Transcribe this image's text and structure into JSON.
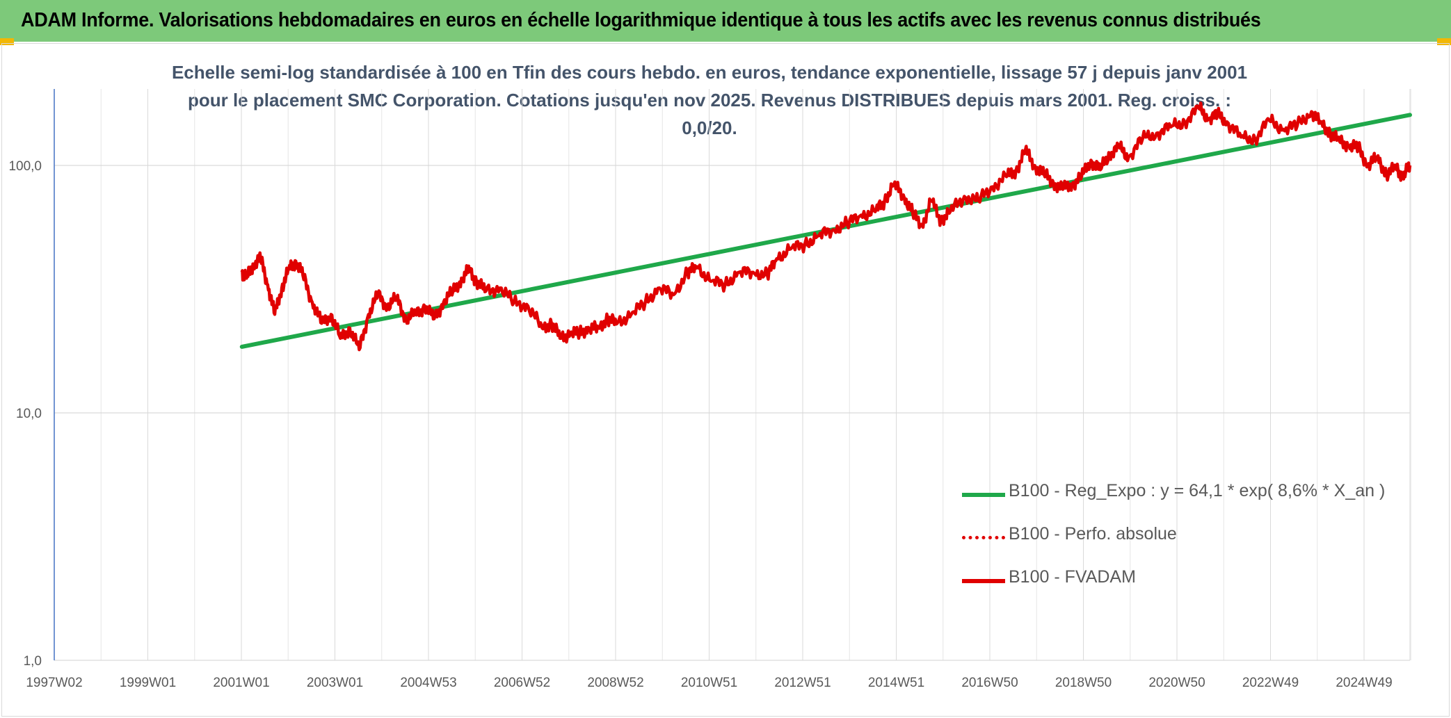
{
  "header": {
    "title": "ADAM Informe. Valorisations hebdomadaires en euros en échelle logarithmique identique à tous les actifs avec les revenus connus distribués"
  },
  "chart_data": {
    "type": "line",
    "title": "Echelle semi-log standardisée à 100 en Tfin des cours hebdo. en euros, tendance exponentielle, lissage 57 j depuis janv 2001 pour le placement SMC Corporation. Cotations jusqu'en nov 2025. Revenus DISTRIBUES depuis mars 2001. Reg. croiss. : 0,0/20.",
    "xlabel": "",
    "ylabel": "",
    "y_scale": "log",
    "ylim": [
      1,
      200
    ],
    "y_ticks": [
      "1,0",
      "10,0",
      "100,0"
    ],
    "x_ticks": [
      "1997W02",
      "1999W01",
      "2001W01",
      "2003W01",
      "2004W53",
      "2006W52",
      "2008W52",
      "2010W51",
      "2012W51",
      "2014W51",
      "2016W50",
      "2018W50",
      "2020W50",
      "2022W49",
      "2024W49"
    ],
    "x_range": [
      1997.0,
      2025.9
    ],
    "grid": true,
    "legend_position": "bottom-right",
    "colors": {
      "regression": "#1fa84a",
      "perf": "#e00000",
      "fvadam": "#e00000",
      "header_bg": "#7dc97a",
      "corner": "#f2b705"
    },
    "series": [
      {
        "name": "B100 - Reg_Expo : y = 64,1 * exp( 8,6% *  X_an )",
        "style": "solid-green",
        "x": [
          2001.0,
          2025.9
        ],
        "y": [
          18.5,
          160
        ]
      },
      {
        "name": "B100 - Perfo. absolue",
        "style": "dotted-red",
        "x": [],
        "y": []
      },
      {
        "name": "B100 - FVADAM",
        "style": "solid-red",
        "x": [
          2001.0,
          2001.1,
          2001.25,
          2001.4,
          2001.55,
          2001.7,
          2001.85,
          2002.0,
          2002.15,
          2002.3,
          2002.5,
          2002.7,
          2002.9,
          2003.1,
          2003.3,
          2003.5,
          2003.7,
          2003.9,
          2004.1,
          2004.3,
          2004.5,
          2004.7,
          2004.9,
          2005.1,
          2005.3,
          2005.5,
          2005.7,
          2005.85,
          2006.0,
          2006.2,
          2006.5,
          2006.8,
          2007.1,
          2007.4,
          2007.6,
          2007.8,
          2008.0,
          2008.2,
          2008.4,
          2008.6,
          2008.8,
          2009.0,
          2009.3,
          2009.6,
          2009.9,
          2010.2,
          2010.5,
          2010.7,
          2011.0,
          2011.3,
          2011.6,
          2011.9,
          2012.2,
          2012.4,
          2012.7,
          2013.0,
          2013.3,
          2013.6,
          2013.9,
          2014.2,
          2014.5,
          2014.7,
          2014.9,
          2015.1,
          2015.3,
          2015.5,
          2015.7,
          2015.9,
          2016.1,
          2016.4,
          2016.7,
          2017.0,
          2017.3,
          2017.5,
          2017.7,
          2017.9,
          2018.1,
          2018.3,
          2018.5,
          2018.7,
          2018.9,
          2019.1,
          2019.3,
          2019.5,
          2019.7,
          2019.9,
          2020.2,
          2020.5,
          2020.8,
          2021.1,
          2021.4,
          2021.6,
          2021.8,
          2022.0,
          2022.3,
          2022.6,
          2022.9,
          2023.2,
          2023.5,
          2023.8,
          2024.0,
          2024.2,
          2024.4,
          2024.6,
          2024.8,
          2025.0,
          2025.2,
          2025.4,
          2025.6,
          2025.75,
          2025.9
        ],
        "y": [
          37,
          35,
          40,
          42,
          33,
          25,
          32,
          38,
          41,
          36,
          28,
          23,
          25,
          20,
          22,
          18,
          25,
          30,
          27,
          29,
          24,
          25,
          27,
          24,
          28,
          31,
          35,
          38,
          34,
          31,
          32,
          28,
          27,
          22,
          23,
          20,
          21,
          21,
          22,
          22,
          24,
          23,
          25,
          28,
          32,
          30,
          37,
          39,
          34,
          33,
          37,
          37,
          36,
          42,
          46,
          48,
          52,
          55,
          58,
          63,
          65,
          72,
          84,
          76,
          64,
          57,
          72,
          60,
          65,
          75,
          72,
          82,
          90,
          95,
          115,
          100,
          92,
          85,
          80,
          84,
          90,
          105,
          96,
          112,
          118,
          108,
          128,
          135,
          143,
          150,
          170,
          155,
          160,
          150,
          130,
          128,
          152,
          140,
          145,
          165,
          148,
          135,
          125,
          120,
          118,
          100,
          108,
          92,
          98,
          90,
          100
        ]
      }
    ]
  }
}
